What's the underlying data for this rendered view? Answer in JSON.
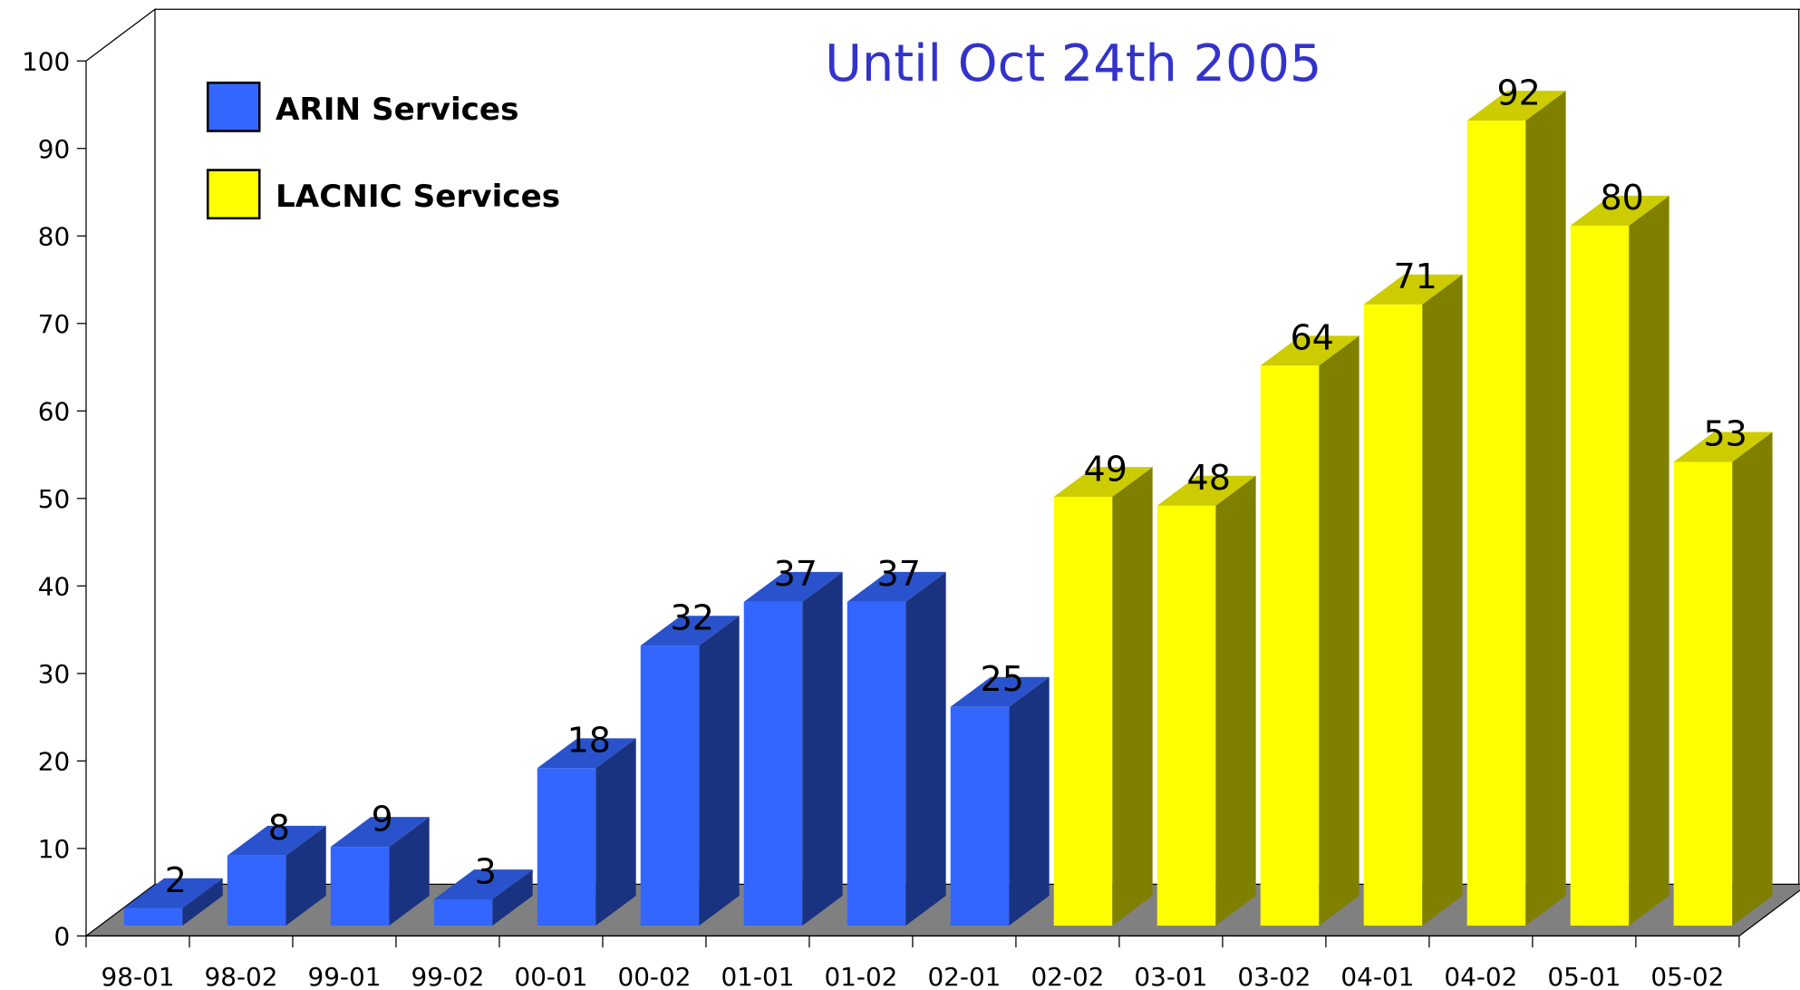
{
  "chart_data": {
    "type": "bar3d",
    "title": "Until Oct 24th 2005",
    "categories": [
      "98-01",
      "98-02",
      "99-01",
      "99-02",
      "00-01",
      "00-02",
      "01-01",
      "01-02",
      "02-01",
      "02-02",
      "03-01",
      "03-02",
      "04-01",
      "04-02",
      "05-01",
      "05-02"
    ],
    "series": [
      {
        "name": "ARIN Services",
        "color": "#3366ff",
        "values": [
          2,
          8,
          9,
          3,
          18,
          32,
          37,
          37,
          25,
          null,
          null,
          null,
          null,
          null,
          null,
          null
        ]
      },
      {
        "name": "LACNIC Services",
        "color": "#ffff00",
        "values": [
          null,
          null,
          null,
          null,
          null,
          null,
          null,
          null,
          null,
          49,
          48,
          64,
          71,
          92,
          80,
          53
        ]
      }
    ],
    "ylim": [
      0,
      100
    ],
    "yticks": [
      0,
      10,
      20,
      30,
      40,
      50,
      60,
      70,
      80,
      90,
      100
    ],
    "legend": "top-left"
  }
}
